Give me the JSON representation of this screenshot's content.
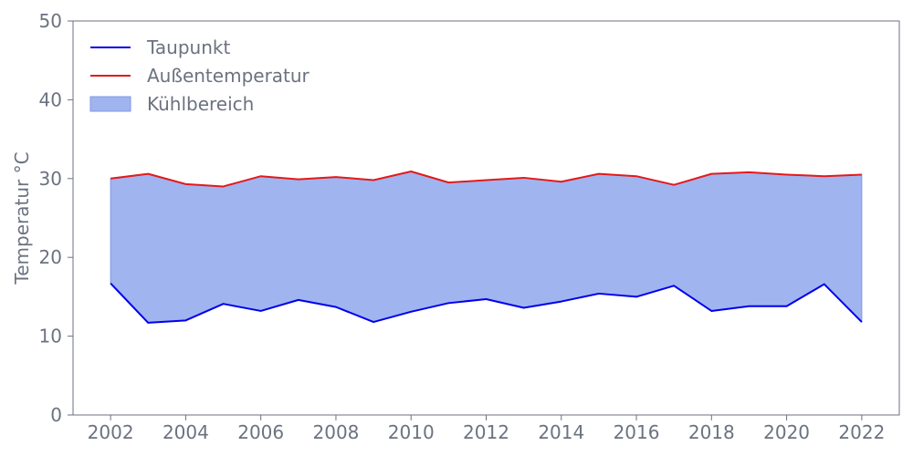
{
  "chart_data": {
    "type": "area",
    "xlabel": "",
    "ylabel": "Temperatur °C",
    "xlim": [
      2001,
      2023
    ],
    "ylim": [
      0,
      50
    ],
    "xticks": [
      2002,
      2004,
      2006,
      2008,
      2010,
      2012,
      2014,
      2016,
      2018,
      2020,
      2022
    ],
    "yticks": [
      0,
      10,
      20,
      30,
      40,
      50
    ],
    "grid": false,
    "legend_position": "top-left",
    "x": [
      2002,
      2003,
      2004,
      2005,
      2006,
      2007,
      2008,
      2009,
      2010,
      2011,
      2012,
      2013,
      2014,
      2015,
      2016,
      2017,
      2018,
      2019,
      2020,
      2021,
      2022
    ],
    "series": [
      {
        "name": "Taupunkt",
        "type": "line",
        "color": "#0000ee",
        "values": [
          16.7,
          11.7,
          12.0,
          14.1,
          13.2,
          14.6,
          13.7,
          11.8,
          13.1,
          14.2,
          14.7,
          13.6,
          14.4,
          15.4,
          15.0,
          16.4,
          13.2,
          13.8,
          13.8,
          16.6,
          11.8
        ]
      },
      {
        "name": "Außentemperatur",
        "type": "line",
        "color": "#e31a1c",
        "values": [
          30.0,
          30.6,
          29.3,
          29.0,
          30.3,
          29.9,
          30.2,
          29.8,
          30.9,
          29.5,
          29.8,
          30.1,
          29.6,
          30.6,
          30.3,
          29.2,
          30.6,
          30.8,
          30.5,
          30.3,
          30.5
        ]
      }
    ],
    "fill": {
      "name": "Kühlbereich",
      "between": [
        "Taupunkt",
        "Außentemperatur"
      ],
      "color": "#a0b4ef"
    }
  }
}
